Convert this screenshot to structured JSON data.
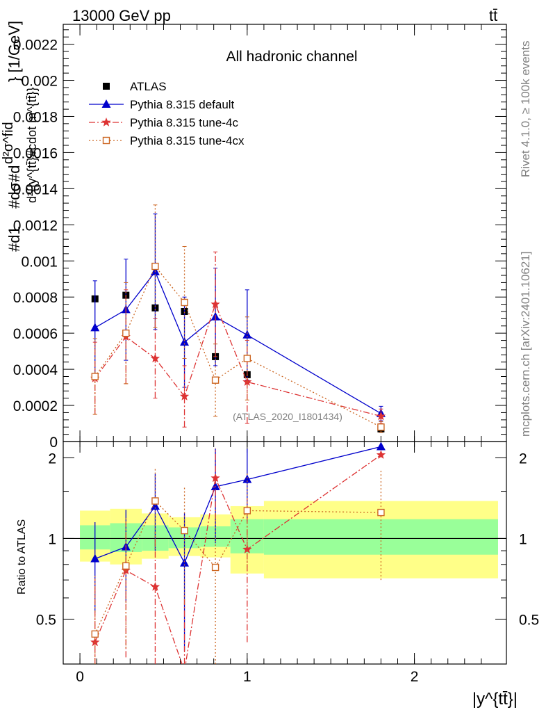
{
  "header": {
    "left": "13000 GeV pp",
    "right": "tt̄"
  },
  "side": {
    "rivet": "Rivet 4.1.0, ≥ 100k events",
    "mcplots": "mcplots.cern.ch [arXiv:2401.10621]"
  },
  "chart_data": {
    "type": "scatter",
    "title": "All hadronic channel",
    "watermark": "(ATLAS_2020_I1801434)",
    "xlabel": "|y^{tt̄}|",
    "ylabel_lines": [
      "#d1",
      "d²σ^fid",
      "d²{|y^{tt̄}#cdot m^{tt̄}}",
      "#dσ#d",
      "} [1/GeV]"
    ],
    "ratio_ylabel": "Ratio to ATLAS",
    "xlim": [
      -0.1,
      2.55
    ],
    "ylim": [
      0,
      0.00231
    ],
    "ratio_ylim": [
      0.34,
      2.3
    ],
    "x_ticks": [
      0,
      1,
      2
    ],
    "x_tick_labels": [
      "0",
      "1",
      "2"
    ],
    "y_ticks": [
      0,
      0.0002,
      0.0004,
      0.0006,
      0.0008,
      0.001,
      0.0012,
      0.0014,
      0.0016,
      0.0018,
      0.002,
      0.0022
    ],
    "y_tick_labels": [
      "0",
      "0.0002",
      "0.0004",
      "0.0006",
      "0.0008",
      "0.001",
      "0.0012",
      "0.0014",
      "0.0016",
      "0.0018",
      "0.002",
      "0.0022"
    ],
    "ratio_ticks": [
      0.5,
      1,
      2
    ],
    "ratio_tick_labels": [
      "0.5",
      "1",
      "2"
    ],
    "bins": [
      [
        0.0,
        0.18
      ],
      [
        0.18,
        0.37
      ],
      [
        0.37,
        0.53
      ],
      [
        0.53,
        0.72
      ],
      [
        0.72,
        0.9
      ],
      [
        0.9,
        1.1
      ],
      [
        1.1,
        2.5
      ]
    ],
    "x": [
      0.09,
      0.275,
      0.45,
      0.625,
      0.81,
      1.0,
      1.8
    ],
    "ratio_band_stat": [
      [
        0.91,
        1.12
      ],
      [
        0.89,
        1.14
      ],
      [
        0.9,
        1.12
      ],
      [
        0.92,
        1.1
      ],
      [
        0.93,
        1.11
      ],
      [
        0.88,
        1.18
      ],
      [
        0.87,
        1.18
      ]
    ],
    "ratio_band_total": [
      [
        0.82,
        1.27
      ],
      [
        0.8,
        1.29
      ],
      [
        0.84,
        1.24
      ],
      [
        0.86,
        1.2
      ],
      [
        0.85,
        1.23
      ],
      [
        0.74,
        1.32
      ],
      [
        0.71,
        1.38
      ]
    ],
    "series": [
      {
        "name": "ATLAS",
        "color": "#000000",
        "marker": "square",
        "values": [
          0.00079,
          0.00081,
          0.00074,
          0.00072,
          0.00047,
          0.00037,
          7e-05
        ],
        "err": [
          0.0,
          0.0,
          0.0,
          0.0,
          0.0,
          0.0,
          0.0
        ],
        "ratio": [
          1,
          1,
          1,
          1,
          1,
          1,
          1
        ],
        "ratio_err": [
          0,
          0,
          0,
          0,
          0,
          0,
          0
        ]
      },
      {
        "name": "Pythia 8.315 default",
        "color": "#0000cc",
        "marker": "triangle",
        "dash": "",
        "values": [
          0.00063,
          0.00073,
          0.00094,
          0.00055,
          0.00069,
          0.00059,
          0.000155
        ],
        "err": [
          0.00026,
          0.00028,
          0.00032,
          0.00025,
          0.00027,
          0.00025,
          4e-05
        ],
        "ratio": [
          0.84,
          0.93,
          1.32,
          0.81,
          1.56,
          1.66,
          2.2
        ],
        "ratio_err": [
          0.31,
          0.35,
          0.42,
          0.43,
          0.6,
          0.5,
          0.0
        ]
      },
      {
        "name": "Pythia 8.315 tune-4c",
        "color": "#dd3333",
        "marker": "star",
        "dash": "9,3,2,3",
        "values": [
          0.00035,
          0.00058,
          0.00046,
          0.00025,
          0.00076,
          0.00033,
          0.00014
        ],
        "err": [
          0.0002,
          0.00026,
          0.00022,
          0.00017,
          0.00029,
          0.00023,
          4e-05
        ],
        "ratio": [
          0.41,
          0.76,
          0.66,
          0.32,
          1.68,
          0.91,
          2.05
        ],
        "ratio_err": [
          0.3,
          0.4,
          0.4,
          0.3,
          0.5,
          0.5,
          0.0
        ]
      },
      {
        "name": "Pythia 8.315 tune-4cx",
        "color": "#cc6622",
        "marker": "opensquare",
        "dash": "2,3",
        "values": [
          0.00036,
          0.0006,
          0.00097,
          0.00077,
          0.00034,
          0.00046,
          8e-05
        ],
        "err": [
          0.00021,
          0.00028,
          0.00034,
          0.00031,
          0.0002,
          0.00023,
          3e-05
        ],
        "ratio": [
          0.44,
          0.79,
          1.38,
          1.07,
          0.78,
          1.27,
          1.25
        ],
        "ratio_err": [
          0.3,
          0.4,
          0.45,
          0.5,
          0.5,
          0.5,
          0.55
        ]
      }
    ]
  }
}
